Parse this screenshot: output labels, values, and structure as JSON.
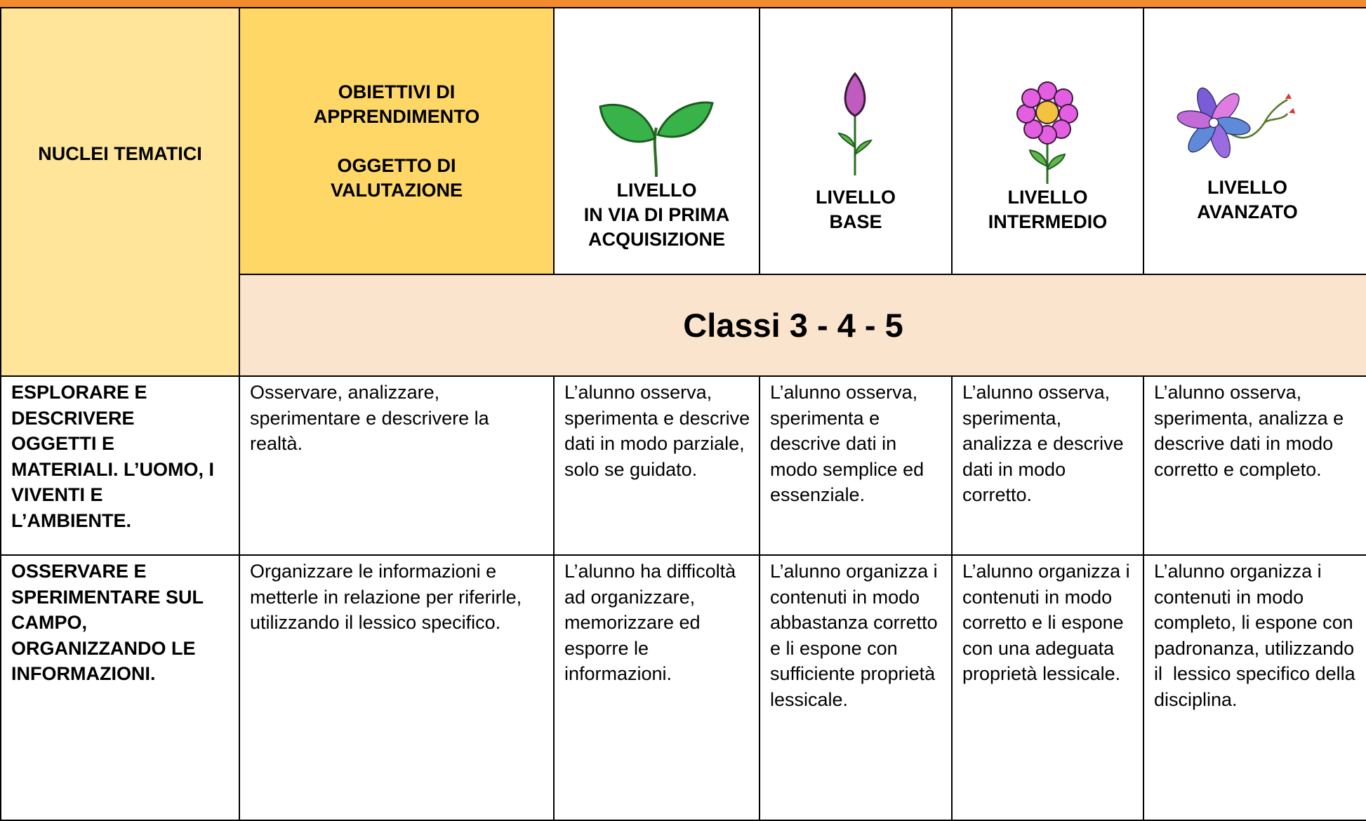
{
  "header": {
    "nuclei": "NUCLEI TEMATICI",
    "objectives": "OBIETTIVI DI APPRENDIMENTO",
    "assessment": "OGGETTO DI VALUTAZIONE",
    "levels": [
      {
        "label": "LIVELLO",
        "name": "IN VIA DI PRIMA ACQUISIZIONE"
      },
      {
        "label": "LIVELLO",
        "name": "BASE"
      },
      {
        "label": "LIVELLO",
        "name": "INTERMEDIO"
      },
      {
        "label": "LIVELLO",
        "name": "AVANZATO"
      }
    ],
    "classes": "Classi 3 - 4 - 5"
  },
  "rows": [
    {
      "nucleus": "ESPLORARE E DESCRIVERE OGGETTI E MATERIALI. L’UOMO, I VIVENTI E L’AMBIENTE.",
      "objective": "Osservare, analizzare, sperimentare e descrivere la realtà.",
      "levels": [
        "L’alunno osserva, sperimenta e descrive dati in modo parziale, solo se guidato.",
        "L’alunno osserva, sperimenta e descrive dati in modo semplice ed essenziale.",
        "L’alunno osserva, sperimenta, analizza e descrive dati in modo corretto.",
        "L’alunno osserva, sperimenta, analizza e descrive dati in modo corretto e completo."
      ]
    },
    {
      "nucleus": "OSSERVARE E SPERIMENTARE SUL CAMPO, ORGANIZZANDO LE INFORMAZIONI.",
      "objective": "Organizzare le informazioni e metterle in relazione per riferirle, utilizzando il lessico specifico.",
      "levels": [
        "L’alunno ha difficoltà ad organizzare, memorizzare ed esporre le informazioni.",
        "L’alunno organizza i contenuti in modo abbastanza corretto e li espone con sufficiente proprietà lessicale.",
        "L’alunno organizza i contenuti in modo corretto e li espone con una adeguata proprietà lessicale.",
        "L’alunno organizza i contenuti in modo completo, li espone con padronanza, utilizzando il  lessico specifico della disciplina."
      ]
    }
  ]
}
